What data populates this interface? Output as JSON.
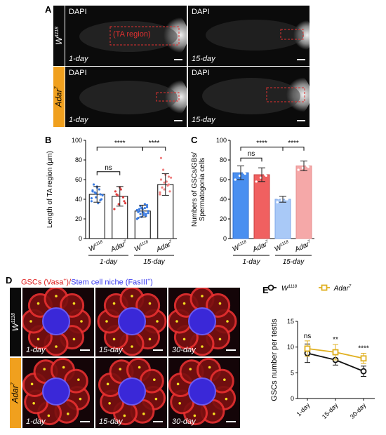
{
  "panel_letters": {
    "a": "A",
    "b": "B",
    "c": "C",
    "d": "D",
    "e": "E"
  },
  "panel_a": {
    "row_labels": {
      "w1118_base": "W",
      "w1118_sup": "1118",
      "adar_base": "Adar",
      "adar_sup": "7"
    },
    "stain": "DAPI",
    "ta_label": "TA region",
    "days": [
      "1-day",
      "15-day"
    ]
  },
  "panel_b": {
    "ylabel": "Length of TA region (μm)",
    "sig_ns": "ns",
    "sig_a": "****",
    "sig_b": "****",
    "group_labels": [
      "1-day",
      "15-day"
    ],
    "genotypes": {
      "w_base": "W",
      "w_sup": "1118",
      "adar_base": "Adar",
      "adar_sup": "7"
    },
    "ticks": [
      "0",
      "20",
      "40",
      "60",
      "80",
      "100"
    ]
  },
  "panel_c": {
    "ylabel_line1": "Numbers of GSCs/GBs/",
    "ylabel_line2": "Spermatogonia cells",
    "sig_ns": "ns",
    "sig_a": "****",
    "sig_b": "****",
    "group_labels": [
      "1-day",
      "15-day"
    ],
    "ticks": [
      "0",
      "20",
      "40",
      "60",
      "80",
      "100"
    ]
  },
  "panel_d": {
    "title_red": "GSCs (Vasa",
    "title_red_sup": "+",
    "title_sep": ")/",
    "title_blue": "Stem cell niche (FasIII",
    "title_blue_sup": "+",
    "title_end": ")",
    "row_labels": {
      "w_base": "W",
      "w_sup": "1118",
      "adar_base": "Adar",
      "adar_sup": "7"
    },
    "days": [
      "1-day",
      "15-day",
      "30-day"
    ]
  },
  "panel_e": {
    "ylabel": "GSCs number per testis",
    "legend": {
      "w_base": "W",
      "w_sup": "1118",
      "adar_base": "Adar",
      "adar_sup": "7"
    },
    "sig": [
      "ns",
      "**",
      "****"
    ],
    "x_ticks": [
      "1-day",
      "15-day",
      "30-day"
    ],
    "y_ticks": [
      "0",
      "5",
      "10",
      "15"
    ]
  },
  "colors": {
    "w_bar": "#4a8ff0",
    "adar_bar": "#f06060",
    "w_bar_light": "#a9c9f7",
    "adar_bar_light": "#f5a8a8",
    "adar_tag": "#f0a01e",
    "line_w": "#111111",
    "line_adar": "#e0b020",
    "ta_red": "#e03030"
  },
  "chart_data": [
    {
      "type": "bar",
      "panel": "B",
      "ylabel": "Length of TA region (μm)",
      "ylim": [
        0,
        100
      ],
      "categories": [
        "W1118 1-day",
        "Adar7 1-day",
        "W1118 15-day",
        "Adar7 15-day"
      ],
      "values": [
        45,
        43,
        28,
        55
      ],
      "errors": [
        8,
        10,
        6,
        11
      ],
      "points": [
        [
          38,
          42,
          45,
          48,
          52,
          40,
          55,
          36,
          44,
          47,
          50,
          41,
          46,
          39,
          49,
          53
        ],
        [
          30,
          35,
          42,
          48,
          52,
          38,
          45,
          50,
          36,
          44
        ],
        [
          20,
          22,
          25,
          27,
          30,
          32,
          28,
          24,
          26,
          33,
          35,
          29,
          31,
          23,
          21,
          27,
          34,
          30,
          26,
          28,
          25,
          31
        ],
        [
          45,
          50,
          55,
          60,
          65,
          48,
          52,
          58,
          62,
          70,
          54,
          47,
          57,
          63,
          82
        ]
      ]
    },
    {
      "type": "bar",
      "panel": "C",
      "ylabel": "Numbers of GSCs/GBs/Spermatogonia cells",
      "ylim": [
        0,
        100
      ],
      "categories": [
        "W1118 1-day",
        "Adar7 1-day",
        "W1118 15-day",
        "Adar7 15-day"
      ],
      "values": [
        67,
        65,
        40,
        74
      ],
      "errors": [
        7,
        7,
        3,
        5
      ],
      "points": [
        [
          60,
          64,
          67,
          70,
          74,
          66
        ],
        [
          58,
          62,
          65,
          68,
          72,
          64
        ],
        [
          37,
          39,
          40,
          41,
          43,
          40
        ],
        [
          70,
          72,
          74,
          77,
          80,
          73
        ]
      ]
    },
    {
      "type": "line",
      "panel": "E",
      "ylabel": "GSCs number per testis",
      "x": [
        "1-day",
        "15-day",
        "30-day"
      ],
      "ylim": [
        0,
        15
      ],
      "series": [
        {
          "name": "W1118",
          "values": [
            8.8,
            7.5,
            5.3
          ],
          "errors": [
            1.8,
            1.0,
            1.0
          ]
        },
        {
          "name": "Adar7",
          "values": [
            9.7,
            9.0,
            7.8
          ],
          "errors": [
            1.5,
            1.5,
            1.0
          ]
        }
      ]
    }
  ]
}
